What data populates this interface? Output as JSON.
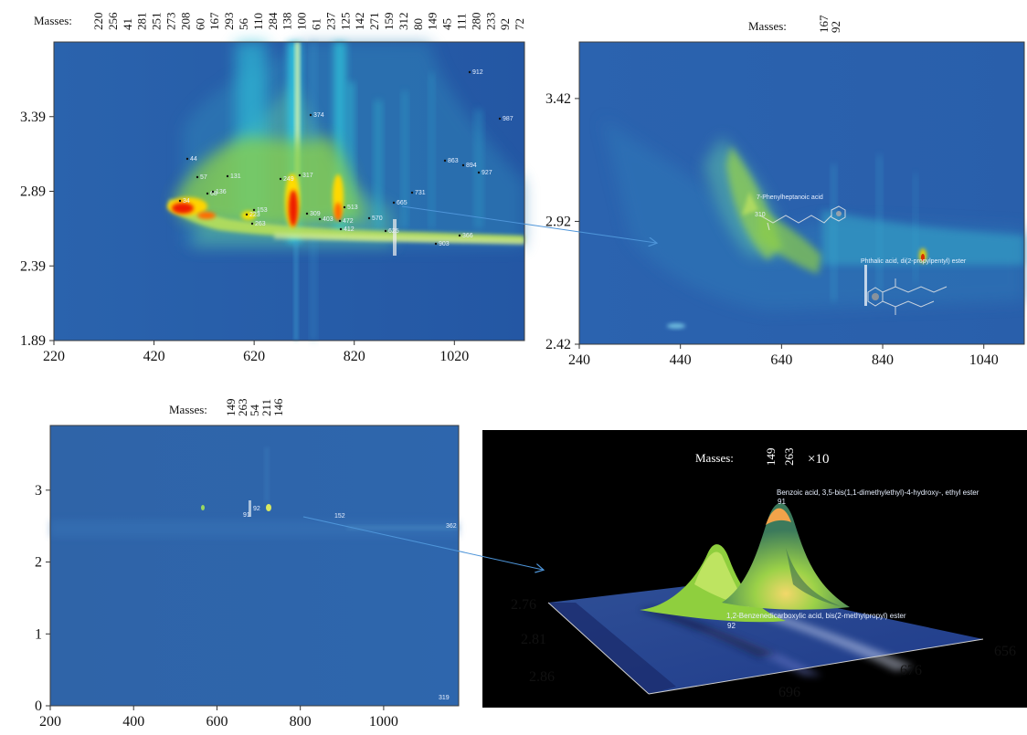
{
  "chart_data": [
    {
      "type": "heatmap",
      "masses_label": "Masses:",
      "masses": [
        "220",
        "256",
        "41",
        "281",
        "251",
        "273",
        "208",
        "60",
        "167",
        "293",
        "56",
        "110",
        "284",
        "138",
        "100",
        "61",
        "237",
        "125",
        "142",
        "271",
        "159",
        "312",
        "80",
        "149",
        "45",
        "111",
        "280",
        "233",
        "92",
        "72"
      ],
      "xticks": [
        "220",
        "420",
        "620",
        "820",
        "1020"
      ],
      "yticks": [
        "1.89",
        "2.39",
        "2.89",
        "3.39"
      ],
      "xlim": [
        220,
        1160
      ],
      "ylim": [
        1.89,
        3.89
      ],
      "peak_labels": [
        "44",
        "57",
        "131",
        "249",
        "317",
        "374",
        "34",
        "68",
        "136",
        "153",
        "223",
        "263",
        "309",
        "513",
        "403",
        "472",
        "570",
        "665",
        "731",
        "863",
        "894",
        "927",
        "912",
        "987",
        "366",
        "903",
        "412",
        "625"
      ]
    },
    {
      "type": "heatmap",
      "masses_label": "Masses:",
      "masses": [
        "167",
        "92"
      ],
      "xticks": [
        "240",
        "440",
        "640",
        "840",
        "1040"
      ],
      "yticks": [
        "2.42",
        "2.92",
        "3.42"
      ],
      "xlim": [
        240,
        1120
      ],
      "ylim": [
        2.42,
        3.65
      ],
      "compound_labels": [
        "7-Phenylheptanoic acid",
        "Phthalic acid, di(2-propylpentyl) ester"
      ],
      "peak_labels": [
        "310"
      ]
    },
    {
      "type": "heatmap",
      "masses_label": "Masses:",
      "masses": [
        "149",
        "263",
        "54",
        "211",
        "146"
      ],
      "xticks": [
        "200",
        "400",
        "600",
        "800",
        "1000"
      ],
      "yticks": [
        "0",
        "1",
        "2",
        "3"
      ],
      "xlim": [
        200,
        1180
      ],
      "ylim": [
        0,
        3.9
      ],
      "peak_labels": [
        "92",
        "91",
        "152",
        "362",
        "319"
      ]
    },
    {
      "type": "area",
      "masses_label": "Masses:",
      "masses": [
        "149",
        "263"
      ],
      "scale_label": "×10",
      "x_ticks": [
        "656",
        "676",
        "696"
      ],
      "y_ticks": [
        "2.76",
        "2.81",
        "2.86"
      ],
      "compound_labels": [
        "Benzoic acid, 3,5-bis(1,1-dimethylethyl)-4-hydroxy-, ethyl ester",
        "1,2-Benzenedicarboxylic acid, bis(2-methylpropyl) ester"
      ],
      "peak_labels": [
        "91",
        "92"
      ]
    }
  ],
  "colors": {
    "background": "#1f4f9a",
    "hot": "#e81c00",
    "warm": "#ffd800",
    "mid": "#9bd64a",
    "cool": "#36c7d8",
    "arrow": "#4e95d9"
  }
}
